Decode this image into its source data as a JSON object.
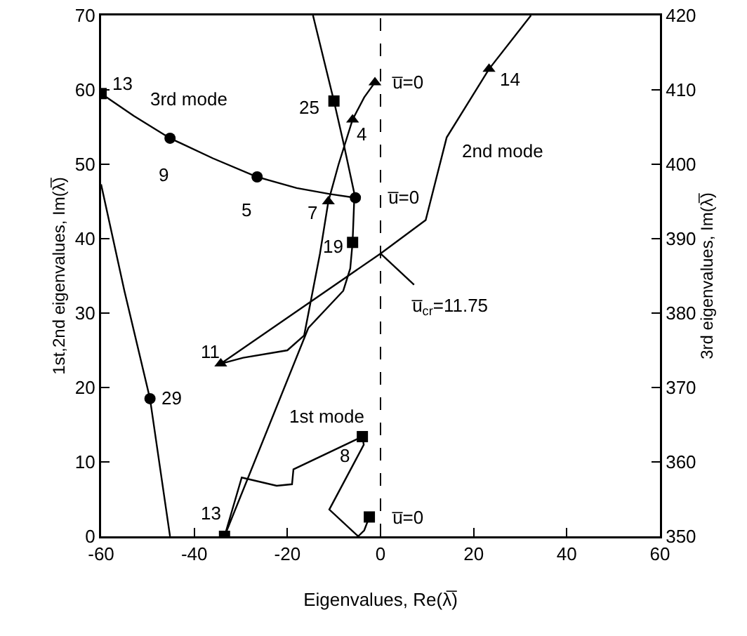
{
  "chart_data": {
    "type": "line",
    "xlabel": "Eigenvalues, Re(λ̅)",
    "ylabel": "1st,2nd eigenvalues, Im(λ̅)",
    "y2label": "3rd eigenvalues, Im(λ̅)",
    "xlim": [
      -60,
      60
    ],
    "xticks": [
      -60,
      -40,
      -20,
      0,
      20,
      40,
      60
    ],
    "ylim": [
      0,
      70
    ],
    "yticks": [
      0,
      10,
      20,
      30,
      40,
      50,
      60,
      70
    ],
    "y2lim": [
      350,
      420
    ],
    "y2ticks": [
      350,
      360,
      370,
      380,
      390,
      400,
      410,
      420
    ],
    "grid": false,
    "ref_lines": [
      {
        "axis": "x",
        "value": 0,
        "line_style": "dashed",
        "color": "#000000"
      }
    ],
    "series": [
      {
        "marker": "none",
        "color": "#000000",
        "x": [
          -2.4,
          -3.5,
          -4.8,
          -11,
          -3.6,
          -3.9,
          -18.7,
          -19,
          -22.3,
          -29.8,
          -33.5,
          -15.5,
          -8,
          -6.5,
          -6,
          -5.6,
          -8,
          -10,
          -14.5
        ],
        "values": [
          2.6,
          0.8,
          0,
          3.6,
          12.3,
          13.4,
          9,
          7,
          6.8,
          7.9,
          0,
          28,
          33,
          36,
          39.5,
          46,
          53,
          58.5,
          70
        ]
      },
      {
        "type": "scatter",
        "marker": "square",
        "color": "#000000",
        "x": [
          -2.4,
          -3.9,
          -33.5,
          -6,
          -10
        ],
        "values": [
          2.6,
          13.4,
          0,
          39.5,
          58.5
        ]
      },
      {
        "marker": "none",
        "color": "#000000",
        "x": [
          -1.2,
          -3.5,
          -6,
          -9,
          -11.2,
          -13,
          -16.4,
          -20,
          -29.5,
          -34.3,
          0,
          9.7,
          14.2,
          23.3,
          32.3
        ],
        "values": [
          61,
          59,
          56,
          50,
          45,
          38,
          27,
          25,
          24,
          23.2,
          38,
          42.5,
          53.6,
          62.8,
          70
        ]
      },
      {
        "type": "scatter",
        "marker": "triangle",
        "color": "#000000",
        "x": [
          -1.2,
          -6,
          -11.2,
          -34.3,
          23.3
        ],
        "values": [
          61,
          56,
          45,
          23.2,
          62.8
        ]
      },
      {
        "marker": "none",
        "color": "#000000",
        "x": [
          0,
          7.2
        ],
        "values": [
          38,
          33.8
        ]
      },
      {
        "marker": "none",
        "color": "#000000",
        "axis": "y2",
        "x": [
          -5.4,
          -10.9,
          -18,
          -26.5,
          -36,
          -45.2,
          -53,
          -60,
          null,
          -60,
          -55,
          -49.5,
          -45.2
        ],
        "values": [
          395.5,
          396,
          396.8,
          398.3,
          400.8,
          403.5,
          406.5,
          409.5,
          null,
          397.3,
          383,
          368.5,
          350
        ]
      },
      {
        "type": "scatter",
        "marker": "circle",
        "color": "#000000",
        "axis": "y2",
        "x": [
          -5.4,
          -26.5,
          -45.2,
          -49.5
        ],
        "values": [
          395.5,
          398.3,
          403.5,
          368.5
        ]
      },
      {
        "type": "scatter",
        "marker": "square",
        "color": "#000000",
        "axis": "y2",
        "x": [
          -60
        ],
        "values": [
          409.5
        ]
      }
    ],
    "annotations": [
      {
        "text": "13",
        "x": -60,
        "y": 59.5
      },
      "3rd mode",
      {
        "text": "9",
        "x": -45.2,
        "y": 53.5
      },
      {
        "text": "5",
        "x": -26.5,
        "y": 48.3
      },
      {
        "text": "7",
        "x": -11.2,
        "y": 45
      },
      {
        "text": "u̅=0",
        "x": -5.4,
        "y": 45.5
      },
      {
        "text": "25",
        "x": -10,
        "y": 58.5
      },
      {
        "text": "4",
        "x": -6,
        "y": 56
      },
      {
        "text": "u̅=0",
        "x": -1.2,
        "y": 61
      },
      {
        "text": "19",
        "x": -6,
        "y": 39.5
      },
      {
        "text": "14",
        "x": 23.3,
        "y": 62.8
      },
      "2nd mode",
      {
        "text": "u̅$_{cr}$=11.75",
        "x": 0,
        "y": 38
      },
      {
        "text": "11",
        "x": -34.3,
        "y": 23.2
      },
      {
        "text": "29",
        "x": -49.5,
        "y": 18.5
      },
      "1st mode",
      {
        "text": "8",
        "x": -3.9,
        "y": 13.4
      },
      {
        "text": "13",
        "x": -33.5,
        "y": 0
      },
      {
        "text": "u̅=0",
        "x": -2.4,
        "y": 2.6
      }
    ]
  }
}
